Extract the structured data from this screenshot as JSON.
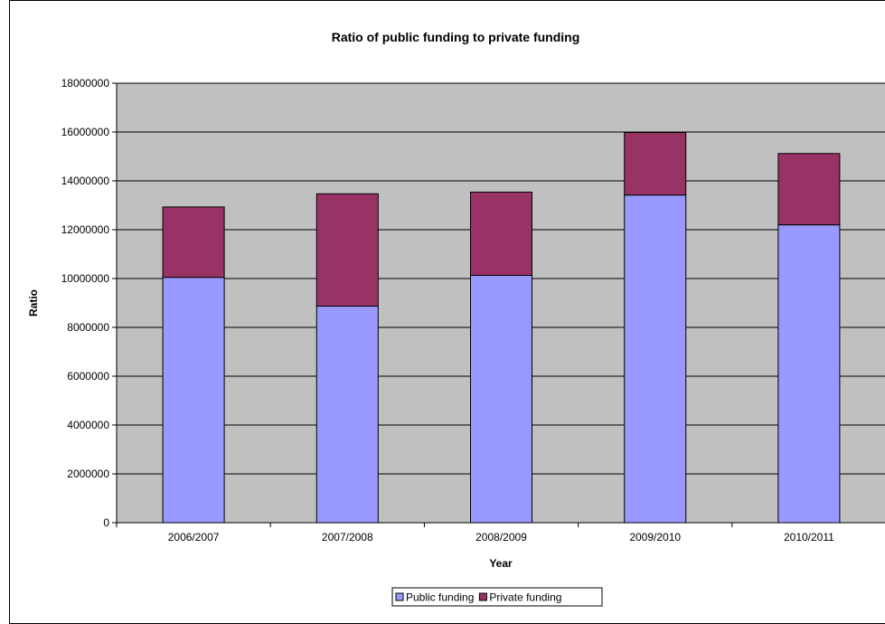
{
  "chart_data": {
    "type": "bar",
    "stacked": true,
    "title": "Ratio of public funding to private funding",
    "xlabel": "Year",
    "ylabel": "Ratio",
    "categories": [
      "2006/2007",
      "2007/2008",
      "2008/2009",
      "2009/2010",
      "2010/2011"
    ],
    "series": [
      {
        "name": "Public funding",
        "color": "#9999ff",
        "values": [
          10050000,
          8870000,
          10130000,
          13420000,
          12200000
        ]
      },
      {
        "name": "Private funding",
        "color": "#993366",
        "values": [
          2880000,
          4600000,
          3410000,
          2560000,
          2920000
        ]
      }
    ],
    "ylim": [
      0,
      18000000
    ],
    "yticks": [
      "0",
      "2000000",
      "4000000",
      "6000000",
      "8000000",
      "10000000",
      "12000000",
      "14000000",
      "16000000",
      "18000000"
    ],
    "grid": true,
    "plot_background": "#c0c0c0",
    "legend_position": "bottom"
  }
}
